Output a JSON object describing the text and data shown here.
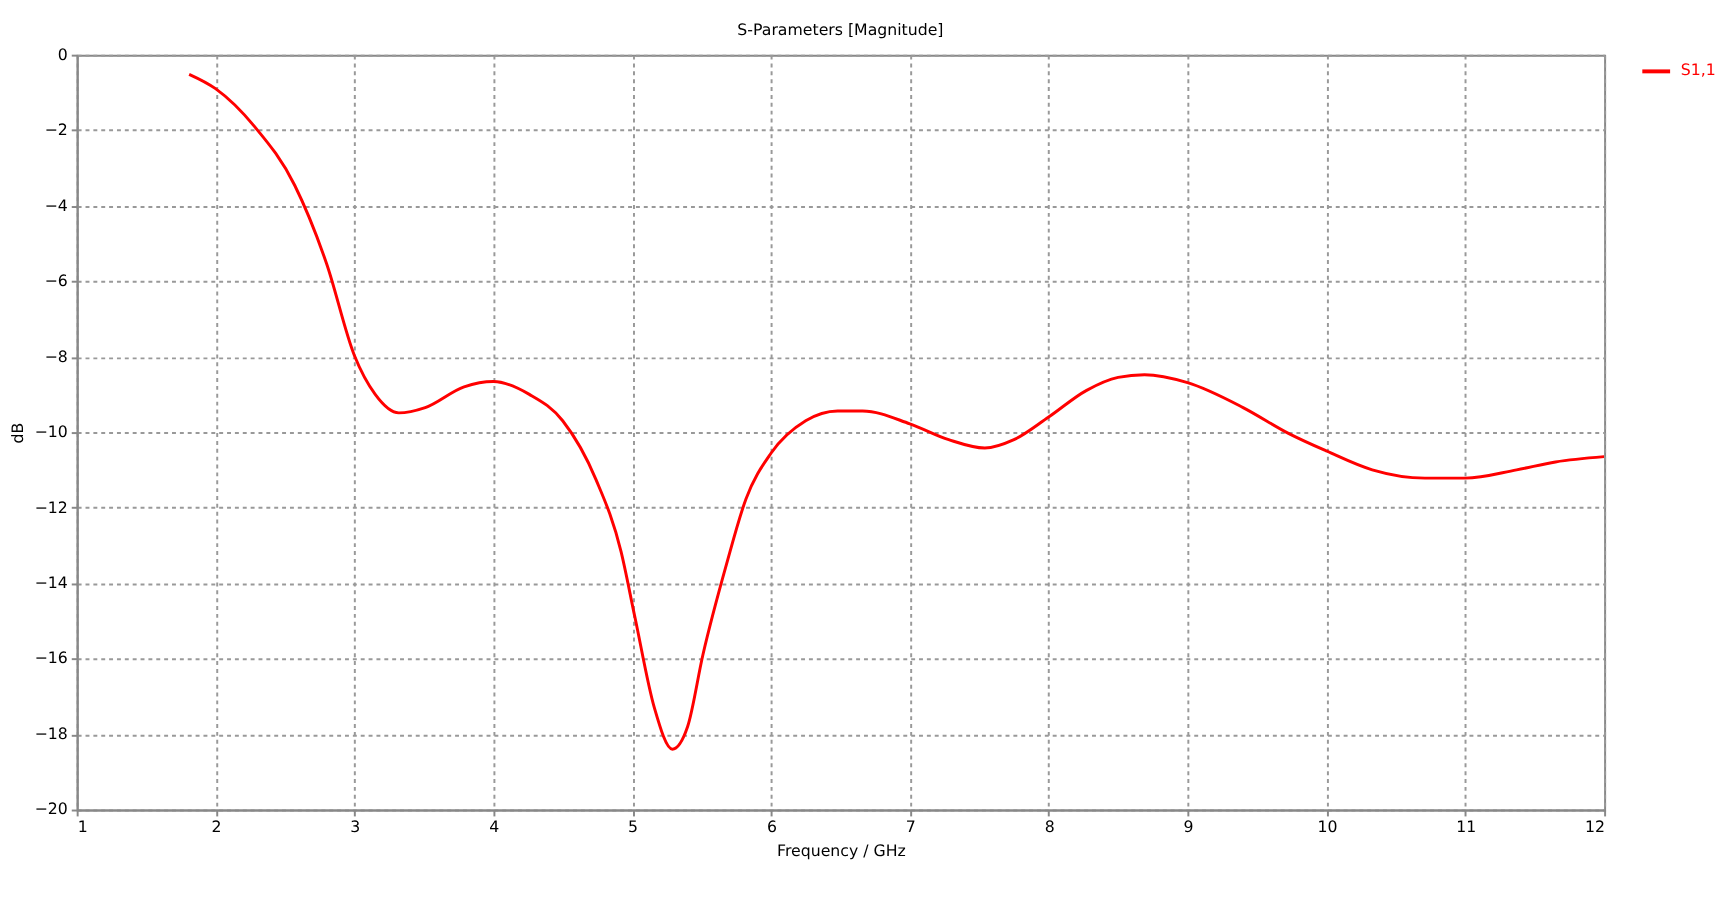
{
  "chart_data": {
    "type": "line",
    "title": "S-Parameters [Magnitude]",
    "xlabel": "Frequency / GHz",
    "ylabel": "dB",
    "xlim": [
      1,
      12
    ],
    "xticks": [
      1,
      2,
      3,
      4,
      5,
      6,
      7,
      8,
      9,
      10,
      11,
      12
    ],
    "ylim": [
      -20,
      0
    ],
    "yticks": [
      -20,
      -18,
      -16,
      -14,
      -12,
      -10,
      -8,
      -6,
      -4,
      -2,
      0
    ],
    "grid": true,
    "legend": "top right",
    "line_style": "solid",
    "marker": "none",
    "x": [
      1.81,
      2.0,
      2.28,
      2.57,
      2.8,
      3.0,
      3.15,
      3.32,
      3.51,
      3.79,
      4.0,
      4.26,
      4.5,
      4.74,
      4.92,
      5.02,
      5.16,
      5.29,
      5.4,
      5.51,
      5.68,
      5.82,
      6.0,
      6.25,
      6.48,
      6.66,
      7.0,
      7.28,
      7.54,
      7.75,
      8.0,
      8.27,
      8.5,
      8.69,
      9.0,
      9.4,
      9.73,
      10.0,
      10.33,
      10.71,
      11.0,
      11.37,
      11.65,
      12.0
    ],
    "series": [
      {
        "name": "S1,1",
        "color": "#ff0000",
        "values": [
          -0.52,
          -0.9,
          -1.9,
          -3.46,
          -5.54,
          -7.97,
          -9.0,
          -9.49,
          -9.35,
          -8.8,
          -8.66,
          -9.0,
          -9.7,
          -11.26,
          -13.16,
          -14.9,
          -17.3,
          -18.4,
          -17.8,
          -15.9,
          -13.5,
          -11.77,
          -10.56,
          -9.7,
          -9.44,
          -9.44,
          -9.78,
          -10.2,
          -10.42,
          -10.2,
          -9.6,
          -8.9,
          -8.55,
          -8.48,
          -8.69,
          -9.35,
          -10.04,
          -10.5,
          -11.0,
          -11.22,
          -11.22,
          -11.0,
          -10.79,
          -10.65
        ]
      }
    ]
  }
}
